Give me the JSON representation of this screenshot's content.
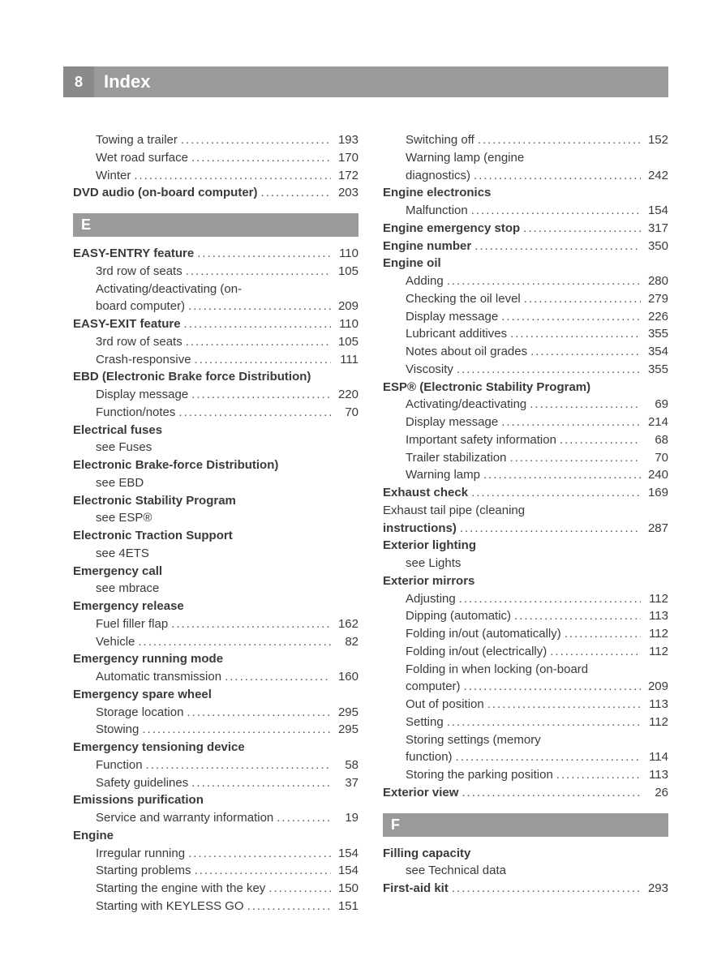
{
  "header": {
    "page_number": "8",
    "title": "Index"
  },
  "columns": {
    "left": [
      {
        "type": "entry",
        "bold": false,
        "indent": 1,
        "label": "Towing a trailer",
        "page": "193"
      },
      {
        "type": "entry",
        "bold": false,
        "indent": 1,
        "label": "Wet road surface",
        "page": "170"
      },
      {
        "type": "entry",
        "bold": false,
        "indent": 1,
        "label": "Winter",
        "page": "172"
      },
      {
        "type": "entry",
        "bold": true,
        "indent": 0,
        "label": "DVD audio (on-board computer)",
        "page": "203"
      },
      {
        "type": "letter",
        "letter": "E"
      },
      {
        "type": "entry",
        "bold": true,
        "indent": 0,
        "label": "EASY-ENTRY feature",
        "page": "110"
      },
      {
        "type": "entry",
        "bold": false,
        "indent": 1,
        "label": "3rd row of seats",
        "page": "105"
      },
      {
        "type": "wrap",
        "bold": false,
        "indent": 1,
        "lines": [
          "Activating/deactivating (on-"
        ],
        "tail_label": "board computer)",
        "page": "209"
      },
      {
        "type": "entry",
        "bold": true,
        "indent": 0,
        "label": "EASY-EXIT feature",
        "page": "110"
      },
      {
        "type": "entry",
        "bold": false,
        "indent": 1,
        "label": "3rd row of seats",
        "page": "105"
      },
      {
        "type": "entry",
        "bold": false,
        "indent": 1,
        "label": "Crash-responsive",
        "page": "111"
      },
      {
        "type": "nopage",
        "bold": true,
        "indent": 0,
        "label": "EBD (Electronic Brake force Distribution)"
      },
      {
        "type": "entry",
        "bold": false,
        "indent": 1,
        "label": "Display message",
        "page": "220"
      },
      {
        "type": "entry",
        "bold": false,
        "indent": 1,
        "label": "Function/notes",
        "page": "70"
      },
      {
        "type": "nopage",
        "bold": true,
        "indent": 0,
        "label": "Electrical fuses"
      },
      {
        "type": "nopage",
        "bold": false,
        "indent": 1,
        "label": "see Fuses"
      },
      {
        "type": "nopage",
        "bold": true,
        "indent": 0,
        "label": "Electronic Brake-force Distribution)"
      },
      {
        "type": "nopage",
        "bold": false,
        "indent": 1,
        "label": "see EBD"
      },
      {
        "type": "nopage",
        "bold": true,
        "indent": 0,
        "label": "Electronic Stability Program"
      },
      {
        "type": "nopage",
        "bold": false,
        "indent": 1,
        "label": "see ESP®"
      },
      {
        "type": "nopage",
        "bold": true,
        "indent": 0,
        "label": "Electronic Traction Support"
      },
      {
        "type": "nopage",
        "bold": false,
        "indent": 1,
        "label": "see 4ETS"
      },
      {
        "type": "nopage",
        "bold": true,
        "indent": 0,
        "label": "Emergency call"
      },
      {
        "type": "nopage",
        "bold": false,
        "indent": 1,
        "label": "see mbrace"
      },
      {
        "type": "nopage",
        "bold": true,
        "indent": 0,
        "label": "Emergency release"
      },
      {
        "type": "entry",
        "bold": false,
        "indent": 1,
        "label": "Fuel filler flap",
        "page": "162"
      },
      {
        "type": "entry",
        "bold": false,
        "indent": 1,
        "label": "Vehicle",
        "page": "82"
      },
      {
        "type": "nopage",
        "bold": true,
        "indent": 0,
        "label": "Emergency running mode"
      },
      {
        "type": "entry",
        "bold": false,
        "indent": 1,
        "label": "Automatic transmission",
        "page": "160"
      },
      {
        "type": "nopage",
        "bold": true,
        "indent": 0,
        "label": "Emergency spare wheel"
      },
      {
        "type": "entry",
        "bold": false,
        "indent": 1,
        "label": "Storage location",
        "page": "295"
      },
      {
        "type": "entry",
        "bold": false,
        "indent": 1,
        "label": "Stowing",
        "page": "295"
      },
      {
        "type": "nopage",
        "bold": true,
        "indent": 0,
        "label": "Emergency tensioning device"
      },
      {
        "type": "entry",
        "bold": false,
        "indent": 1,
        "label": "Function",
        "page": "58"
      },
      {
        "type": "entry",
        "bold": false,
        "indent": 1,
        "label": "Safety guidelines",
        "page": "37"
      },
      {
        "type": "nopage",
        "bold": true,
        "indent": 0,
        "label": "Emissions purification"
      },
      {
        "type": "entry",
        "bold": false,
        "indent": 1,
        "label": "Service and warranty information",
        "page": "19"
      },
      {
        "type": "nopage",
        "bold": true,
        "indent": 0,
        "label": "Engine"
      },
      {
        "type": "entry",
        "bold": false,
        "indent": 1,
        "label": "Irregular running",
        "page": "154"
      },
      {
        "type": "entry",
        "bold": false,
        "indent": 1,
        "label": "Starting problems",
        "page": "154"
      },
      {
        "type": "entry",
        "bold": false,
        "indent": 1,
        "label": "Starting the engine with the key",
        "page": "150"
      },
      {
        "type": "entry",
        "bold": false,
        "indent": 1,
        "label": "Starting with KEYLESS GO",
        "page": "151"
      }
    ],
    "right": [
      {
        "type": "entry",
        "bold": false,
        "indent": 1,
        "label": "Switching off",
        "page": "152"
      },
      {
        "type": "wrap",
        "bold": false,
        "indent": 1,
        "lines": [
          "Warning lamp (engine"
        ],
        "tail_label": "diagnostics)",
        "page": "242"
      },
      {
        "type": "nopage",
        "bold": true,
        "indent": 0,
        "label": "Engine electronics"
      },
      {
        "type": "entry",
        "bold": false,
        "indent": 1,
        "label": "Malfunction",
        "page": "154"
      },
      {
        "type": "entry",
        "bold": true,
        "indent": 0,
        "label": "Engine emergency stop",
        "page": "317"
      },
      {
        "type": "entry",
        "bold": true,
        "indent": 0,
        "label": "Engine number",
        "page": "350"
      },
      {
        "type": "nopage",
        "bold": true,
        "indent": 0,
        "label": "Engine oil"
      },
      {
        "type": "entry",
        "bold": false,
        "indent": 1,
        "label": "Adding",
        "page": "280"
      },
      {
        "type": "entry",
        "bold": false,
        "indent": 1,
        "label": "Checking the oil level",
        "page": "279"
      },
      {
        "type": "entry",
        "bold": false,
        "indent": 1,
        "label": "Display message",
        "page": "226"
      },
      {
        "type": "entry",
        "bold": false,
        "indent": 1,
        "label": "Lubricant additives",
        "page": "355"
      },
      {
        "type": "entry",
        "bold": false,
        "indent": 1,
        "label": "Notes about oil grades",
        "page": "354"
      },
      {
        "type": "entry",
        "bold": false,
        "indent": 1,
        "label": "Viscosity",
        "page": "355"
      },
      {
        "type": "nopage",
        "bold": true,
        "indent": 0,
        "label": "ESP® (Electronic Stability Program)"
      },
      {
        "type": "entry",
        "bold": false,
        "indent": 1,
        "label": "Activating/deactivating",
        "page": "69"
      },
      {
        "type": "entry",
        "bold": false,
        "indent": 1,
        "label": "Display message",
        "page": "214"
      },
      {
        "type": "entry",
        "bold": false,
        "indent": 1,
        "label": "Important safety information",
        "page": "68"
      },
      {
        "type": "entry",
        "bold": false,
        "indent": 1,
        "label": "Trailer stabilization",
        "page": "70"
      },
      {
        "type": "entry",
        "bold": false,
        "indent": 1,
        "label": "Warning lamp",
        "page": "240"
      },
      {
        "type": "entry",
        "bold": true,
        "indent": 0,
        "label": "Exhaust check",
        "page": "169"
      },
      {
        "type": "wrap",
        "bold": true,
        "indent": 0,
        "lines": [
          "Exhaust tail pipe (cleaning"
        ],
        "tail_label": "instructions)",
        "page": "287"
      },
      {
        "type": "nopage",
        "bold": true,
        "indent": 0,
        "label": "Exterior lighting"
      },
      {
        "type": "nopage",
        "bold": false,
        "indent": 1,
        "label": "see Lights"
      },
      {
        "type": "nopage",
        "bold": true,
        "indent": 0,
        "label": "Exterior mirrors"
      },
      {
        "type": "entry",
        "bold": false,
        "indent": 1,
        "label": "Adjusting",
        "page": "112"
      },
      {
        "type": "entry",
        "bold": false,
        "indent": 1,
        "label": "Dipping (automatic)",
        "page": "113"
      },
      {
        "type": "entry",
        "bold": false,
        "indent": 1,
        "label": "Folding in/out (automatically)",
        "page": "112"
      },
      {
        "type": "entry",
        "bold": false,
        "indent": 1,
        "label": "Folding in/out (electrically)",
        "page": "112"
      },
      {
        "type": "wrap",
        "bold": false,
        "indent": 1,
        "lines": [
          "Folding in when locking (on-board"
        ],
        "tail_label": "computer)",
        "page": "209"
      },
      {
        "type": "entry",
        "bold": false,
        "indent": 1,
        "label": "Out of position",
        "page": "113"
      },
      {
        "type": "entry",
        "bold": false,
        "indent": 1,
        "label": "Setting",
        "page": "112"
      },
      {
        "type": "wrap",
        "bold": false,
        "indent": 1,
        "lines": [
          "Storing settings (memory"
        ],
        "tail_label": "function)",
        "page": "114"
      },
      {
        "type": "entry",
        "bold": false,
        "indent": 1,
        "label": "Storing the parking position",
        "page": "113"
      },
      {
        "type": "entry",
        "bold": true,
        "indent": 0,
        "label": "Exterior view",
        "page": "26"
      },
      {
        "type": "letter",
        "letter": "F"
      },
      {
        "type": "nopage",
        "bold": true,
        "indent": 0,
        "label": "Filling capacity"
      },
      {
        "type": "nopage",
        "bold": false,
        "indent": 1,
        "label": "see Technical data"
      },
      {
        "type": "entry",
        "bold": true,
        "indent": 0,
        "label": "First-aid kit",
        "page": "293"
      }
    ]
  },
  "style": {
    "dot_fill": "...................................................................................................."
  }
}
